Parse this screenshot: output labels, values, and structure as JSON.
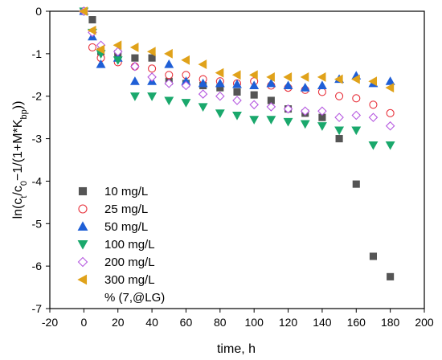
{
  "chart_data": {
    "type": "scatter",
    "xlabel": "time, h",
    "ylabel_parts": {
      "pre": "ln(c",
      "sub1": "t",
      "mid1": "/c",
      "sub2": "0",
      "mid2": "−1/(1+M*K",
      "sub3": "bp",
      "post": "))"
    },
    "xlim": [
      -20,
      200
    ],
    "ylim": [
      -7,
      0
    ],
    "xticks": [
      -20,
      0,
      20,
      40,
      60,
      80,
      100,
      120,
      140,
      160,
      180,
      200
    ],
    "yticks": [
      0,
      -1,
      -2,
      -3,
      -4,
      -5,
      -6,
      -7
    ],
    "legend_position": "lower-left",
    "legend_extra_text": "% (7,@LG)",
    "series": [
      {
        "name": "10 mg/L",
        "marker": "square",
        "filled": true,
        "color": "#555555",
        "x": [
          0,
          5,
          10,
          20,
          30,
          40,
          50,
          60,
          70,
          80,
          90,
          100,
          110,
          120,
          130,
          140,
          150,
          160,
          170,
          180
        ],
        "y": [
          0,
          -0.2,
          -0.95,
          -1.0,
          -1.1,
          -1.1,
          -1.65,
          -1.7,
          -1.75,
          -1.8,
          -1.9,
          -1.97,
          -2.1,
          -2.3,
          -2.4,
          -2.5,
          -3.0,
          -4.07,
          -5.77,
          -6.25
        ]
      },
      {
        "name": "25 mg/L",
        "marker": "circle",
        "filled": false,
        "color": "#e8323c",
        "x": [
          0,
          5,
          10,
          20,
          30,
          40,
          50,
          60,
          70,
          80,
          90,
          100,
          110,
          120,
          130,
          140,
          150,
          160,
          170,
          180
        ],
        "y": [
          0,
          -0.85,
          -1.1,
          -1.2,
          -1.3,
          -1.35,
          -1.5,
          -1.5,
          -1.6,
          -1.65,
          -1.7,
          -1.65,
          -1.75,
          -1.8,
          -1.85,
          -1.9,
          -2.0,
          -2.05,
          -2.2,
          -2.4
        ]
      },
      {
        "name": "50 mg/L",
        "marker": "triangle-up",
        "filled": true,
        "color": "#1f5fd6",
        "x": [
          0,
          5,
          10,
          20,
          30,
          40,
          50,
          60,
          70,
          80,
          90,
          100,
          110,
          120,
          130,
          140,
          150,
          160,
          170,
          180
        ],
        "y": [
          0,
          -0.6,
          -1.25,
          -1.1,
          -1.65,
          -1.65,
          -1.25,
          -1.65,
          -1.7,
          -1.7,
          -1.72,
          -1.75,
          -1.7,
          -1.75,
          -1.8,
          -1.75,
          -1.6,
          -1.52,
          -1.7,
          -1.65
        ]
      },
      {
        "name": "100 mg/L",
        "marker": "triangle-down",
        "filled": true,
        "color": "#1aa86c",
        "x": [
          0,
          5,
          10,
          20,
          30,
          40,
          50,
          60,
          70,
          80,
          90,
          100,
          110,
          120,
          130,
          140,
          150,
          160,
          170,
          180
        ],
        "y": [
          0,
          -0.5,
          -1.0,
          -1.15,
          -2.0,
          -2.0,
          -2.1,
          -2.15,
          -2.25,
          -2.4,
          -2.45,
          -2.55,
          -2.55,
          -2.6,
          -2.65,
          -2.7,
          -2.8,
          -2.8,
          -3.15,
          -3.15
        ]
      },
      {
        "name": "200 mg/L",
        "marker": "diamond",
        "filled": false,
        "color": "#b65ae0",
        "x": [
          0,
          5,
          10,
          20,
          30,
          40,
          50,
          60,
          70,
          80,
          90,
          100,
          110,
          120,
          130,
          140,
          150,
          160,
          170,
          180
        ],
        "y": [
          0,
          -0.5,
          -0.8,
          -0.95,
          -1.3,
          -1.55,
          -1.7,
          -1.75,
          -1.95,
          -2.0,
          -2.1,
          -2.2,
          -2.25,
          -2.3,
          -2.35,
          -2.35,
          -2.5,
          -2.45,
          -2.5,
          -2.7
        ]
      },
      {
        "name": "300 mg/L",
        "marker": "triangle-left",
        "filled": true,
        "color": "#e0a21a",
        "x": [
          0,
          5,
          10,
          20,
          30,
          40,
          50,
          60,
          70,
          80,
          90,
          100,
          110,
          120,
          130,
          140,
          150,
          160,
          170,
          180
        ],
        "y": [
          0,
          -0.45,
          -0.9,
          -0.8,
          -0.85,
          -0.95,
          -1.0,
          -1.15,
          -1.25,
          -1.45,
          -1.5,
          -1.5,
          -1.55,
          -1.55,
          -1.55,
          -1.55,
          -1.6,
          -1.6,
          -1.65,
          -1.8
        ]
      }
    ]
  }
}
